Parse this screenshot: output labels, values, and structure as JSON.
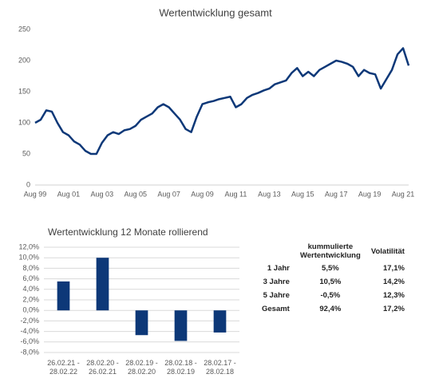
{
  "chart_data": [
    {
      "type": "line",
      "title": "Wertentwicklung gesamt",
      "color": "#0d3878",
      "grid": false,
      "categories": [
        "Aug 99",
        null,
        null,
        null,
        null,
        null,
        "Aug 01",
        null,
        null,
        null,
        null,
        null,
        "Aug 03",
        null,
        null,
        null,
        null,
        null,
        "Aug 05",
        null,
        null,
        null,
        null,
        null,
        "Aug 07",
        null,
        null,
        null,
        null,
        null,
        "Aug 09",
        null,
        null,
        null,
        null,
        null,
        "Aug 11",
        null,
        null,
        null,
        null,
        null,
        "Aug 13",
        null,
        null,
        null,
        null,
        null,
        "Aug 15",
        null,
        null,
        null,
        null,
        null,
        "Aug 17",
        null,
        null,
        null,
        null,
        null,
        "Aug 19",
        null,
        null,
        null,
        null,
        null,
        "Aug 21",
        null
      ],
      "values": [
        100,
        105,
        120,
        118,
        100,
        85,
        80,
        70,
        65,
        55,
        50,
        50,
        68,
        80,
        85,
        82,
        88,
        90,
        95,
        105,
        110,
        115,
        125,
        130,
        125,
        115,
        105,
        90,
        85,
        110,
        130,
        133,
        135,
        138,
        140,
        142,
        125,
        130,
        140,
        145,
        148,
        152,
        155,
        162,
        165,
        168,
        180,
        188,
        175,
        182,
        175,
        185,
        190,
        195,
        200,
        198,
        195,
        190,
        175,
        185,
        180,
        178,
        155,
        170,
        185,
        210,
        220,
        192
      ],
      "ylim": [
        0,
        250
      ],
      "yticks": [
        0,
        50,
        100,
        150,
        200,
        250
      ]
    },
    {
      "type": "bar",
      "title": "Wertentwicklung 12 Monate rollierend",
      "color": "#0d3878",
      "grid": true,
      "categories": [
        "26.02.21 - 28.02.22",
        "28.02.20 - 26.02.21",
        "28.02.19 - 28.02.20",
        "28.02.18 - 28.02.19",
        "28.02.17 - 28.02.18"
      ],
      "values": [
        5.5,
        10.0,
        -4.7,
        -5.8,
        -4.2
      ],
      "ylim": [
        -8,
        12
      ],
      "yticks": [
        {
          "value": -8,
          "label": "-8,0%"
        },
        {
          "value": -6,
          "label": "-6,0%"
        },
        {
          "value": -4,
          "label": "-4,0%"
        },
        {
          "value": -2,
          "label": "-2,0%"
        },
        {
          "value": 0,
          "label": "0,0%"
        },
        {
          "value": 2,
          "label": "2,0%"
        },
        {
          "value": 4,
          "label": "4,0%"
        },
        {
          "value": 6,
          "label": "6,0%"
        },
        {
          "value": 8,
          "label": "8,0%"
        },
        {
          "value": 10,
          "label": "10,0%"
        },
        {
          "value": 12,
          "label": "12,0%"
        }
      ]
    }
  ],
  "table": {
    "header": [
      "kummulierte Wertentwicklung",
      "Volatilität"
    ],
    "rows": [
      [
        "1 Jahr",
        "5,5%",
        "17,1%"
      ],
      [
        "3 Jahre",
        "10,5%",
        "14,2%"
      ],
      [
        "5 Jahre",
        "-0,5%",
        "12,3%"
      ],
      [
        "Gesamt",
        "92,4%",
        "17,2%"
      ]
    ]
  }
}
